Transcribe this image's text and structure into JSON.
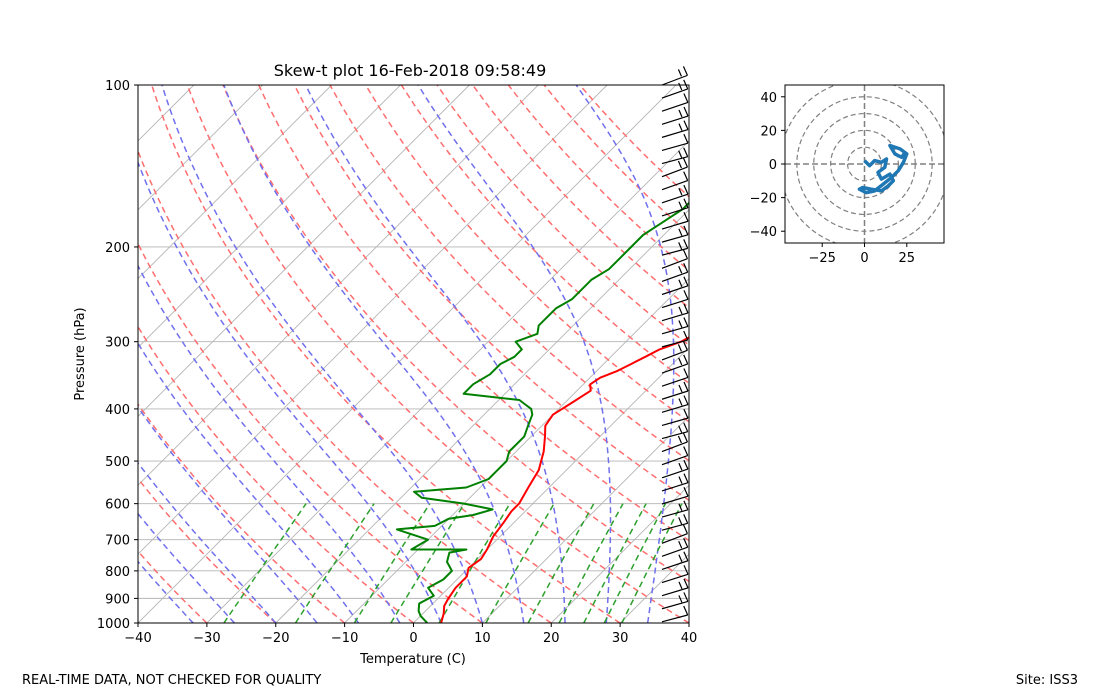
{
  "footer": {
    "left": "REAL-TIME DATA, NOT CHECKED FOR QUALITY",
    "right": "Site: ISS3"
  },
  "colors": {
    "temperature": "#ff0000",
    "dewpoint": "#008000",
    "dry_adiabat": "#ff6e6e",
    "moist_adiabat": "#7070ee",
    "mixing_ratio": "#2ca02c",
    "isotherm": "#b4b4b4",
    "isobar": "#b4b4b4",
    "barbs": "#000000",
    "hodograph": "#1f77b4",
    "hodo_rings": "#808080"
  },
  "chart_data": [
    {
      "type": "line",
      "subtype": "skew-t",
      "title": "Skew-t plot 16-Feb-2018 09:58:49",
      "xlabel": "Temperature (C)",
      "ylabel": "Pressure (hPa)",
      "xlim": [
        -40,
        40
      ],
      "ylim": [
        1000,
        100
      ],
      "yscale": "log",
      "x_ticks": [
        "−40",
        "−30",
        "−20",
        "−10",
        "0",
        "10",
        "20",
        "30",
        "40"
      ],
      "y_ticks": [
        "100",
        "200",
        "300",
        "400",
        "500",
        "600",
        "700",
        "800",
        "900",
        "1000"
      ],
      "grid": true,
      "series": [
        {
          "key": "temperature",
          "points": [
            [
              4,
              1000
            ],
            [
              3,
              960
            ],
            [
              2,
              930
            ],
            [
              1.5,
              900
            ],
            [
              1,
              860
            ],
            [
              1,
              820
            ],
            [
              0,
              790
            ],
            [
              0.5,
              760
            ],
            [
              0,
              730
            ],
            [
              -1,
              690
            ],
            [
              -1.5,
              650
            ],
            [
              -2,
              620
            ],
            [
              -2,
              600
            ],
            [
              -3,
              560
            ],
            [
              -4,
              520
            ],
            [
              -6,
              480
            ],
            [
              -8,
              450
            ],
            [
              -9.5,
              430
            ],
            [
              -10,
              410
            ],
            [
              -9,
              390
            ],
            [
              -8,
              370
            ],
            [
              -9,
              360
            ],
            [
              -8.5,
              350
            ],
            [
              -7,
              340
            ],
            [
              -6,
              330
            ],
            [
              -5,
              320
            ],
            [
              -4,
              310
            ],
            [
              -2,
              300
            ],
            [
              -1,
              290
            ],
            [
              -1,
              280
            ],
            [
              -1,
              270
            ],
            [
              -1,
              260
            ],
            [
              0,
              250
            ],
            [
              0,
              240
            ],
            [
              1,
              230
            ],
            [
              1.5,
              220
            ],
            [
              1.5,
              210
            ],
            [
              2,
              200
            ],
            [
              1,
              190
            ],
            [
              1,
              180
            ],
            [
              1.5,
              170
            ],
            [
              0.5,
              160
            ],
            [
              0.5,
              150
            ],
            [
              0,
              140
            ],
            [
              -1,
              130
            ],
            [
              -3,
              120
            ],
            [
              -5,
              110
            ],
            [
              -7,
              103
            ]
          ]
        },
        {
          "key": "dewpoint",
          "points": [
            [
              2,
              1000
            ],
            [
              0,
              970
            ],
            [
              -1,
              950
            ],
            [
              -2,
              920
            ],
            [
              -1,
              890
            ],
            [
              -3,
              860
            ],
            [
              -2,
              830
            ],
            [
              -2,
              800
            ],
            [
              -4,
              770
            ],
            [
              -5,
              740
            ],
            [
              -3,
              730
            ],
            [
              -11,
              730
            ],
            [
              -10,
              700
            ],
            [
              -16,
              670
            ],
            [
              -11,
              660
            ],
            [
              -10,
              640
            ],
            [
              -7,
              630
            ],
            [
              -5,
              615
            ],
            [
              -10,
              600
            ],
            [
              -17,
              585
            ],
            [
              -19,
              570
            ],
            [
              -12,
              560
            ],
            [
              -10,
              540
            ],
            [
              -10,
              520
            ],
            [
              -10,
              500
            ],
            [
              -11,
              480
            ],
            [
              -11,
              460
            ],
            [
              -11,
              450
            ],
            [
              -12,
              430
            ],
            [
              -13,
              410
            ],
            [
              -14,
              400
            ],
            [
              -16,
              390
            ],
            [
              -17,
              385
            ],
            [
              -26,
              375
            ],
            [
              -26,
              360
            ],
            [
              -25,
              345
            ],
            [
              -25,
              330
            ],
            [
              -24,
              320
            ],
            [
              -24,
              310
            ],
            [
              -26,
              300
            ],
            [
              -24,
              290
            ],
            [
              -25,
              280
            ],
            [
              -25,
              270
            ],
            [
              -25,
              260
            ],
            [
              -24,
              250
            ],
            [
              -24,
              240
            ],
            [
              -24,
              230
            ],
            [
              -23,
              220
            ],
            [
              -23,
              210
            ],
            [
              -23,
              200
            ],
            [
              -23,
              190
            ],
            [
              -22,
              180
            ],
            [
              -21,
              170
            ],
            [
              -21,
              160
            ],
            [
              -20,
              150
            ],
            [
              -20,
              140
            ],
            [
              -20,
              130
            ],
            [
              -19,
              120
            ],
            [
              -19,
              110
            ],
            [
              -19,
              103
            ]
          ]
        }
      ]
    },
    {
      "type": "line",
      "subtype": "hodograph",
      "xlim": [
        -47,
        47
      ],
      "ylim": [
        -47,
        47
      ],
      "x_ticks": [
        "−25",
        "0",
        "25"
      ],
      "y_ticks": [
        "−40",
        "−20",
        "0",
        "20",
        "40"
      ],
      "rings": [
        10,
        20,
        30,
        40,
        50
      ],
      "points": [
        [
          0,
          2
        ],
        [
          3,
          -1
        ],
        [
          6,
          2
        ],
        [
          10,
          1
        ],
        [
          13,
          3
        ],
        [
          12,
          -2
        ],
        [
          8,
          -5
        ],
        [
          10,
          -9
        ],
        [
          15,
          -6
        ],
        [
          17,
          -10
        ],
        [
          14,
          -13
        ],
        [
          10,
          -16
        ],
        [
          4,
          -15
        ],
        [
          -1,
          -14
        ],
        [
          -3,
          -15
        ],
        [
          1,
          -17
        ],
        [
          6,
          -16
        ],
        [
          11,
          -12
        ],
        [
          16,
          -8
        ],
        [
          20,
          -4
        ],
        [
          23,
          1
        ],
        [
          25,
          6
        ],
        [
          21,
          9
        ],
        [
          15,
          11
        ],
        [
          18,
          6
        ],
        [
          22,
          4
        ],
        [
          24,
          7
        ]
      ]
    }
  ]
}
